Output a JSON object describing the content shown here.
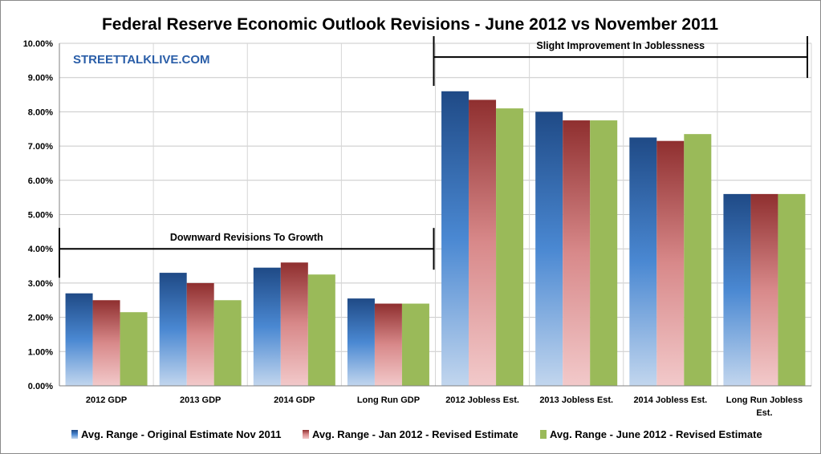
{
  "chart_data": {
    "type": "bar",
    "title": "Federal Reserve Economic Outlook Revisions - June 2012 vs November 2011",
    "xlabel": "",
    "ylabel": "",
    "ylim": [
      0,
      10
    ],
    "yticks": [
      "0.00%",
      "1.00%",
      "2.00%",
      "3.00%",
      "4.00%",
      "5.00%",
      "6.00%",
      "7.00%",
      "8.00%",
      "9.00%",
      "10.00%"
    ],
    "grid": true,
    "legend": "bottom",
    "categories": [
      [
        "2012 GDP"
      ],
      [
        "2013 GDP"
      ],
      [
        "2014 GDP"
      ],
      [
        "Long Run GDP"
      ],
      [
        "2012 Jobless Est."
      ],
      [
        "2013 Jobless Est."
      ],
      [
        "2014 Jobless Est."
      ],
      [
        "Long Run Jobless",
        "Est."
      ]
    ],
    "series": [
      {
        "name": "Avg. Range - Original Estimate Nov 2011",
        "color": "#2f5e9e",
        "values": [
          2.7,
          3.3,
          3.45,
          2.55,
          8.6,
          8.0,
          7.25,
          5.6
        ]
      },
      {
        "name": "Avg. Range - Jan 2012 - Revised Estimate",
        "color": "#a03a3a",
        "values": [
          2.5,
          3.0,
          3.6,
          2.4,
          8.35,
          7.75,
          7.15,
          5.6
        ]
      },
      {
        "name": "Avg. Range - June 2012 - Revised Estimate",
        "color": "#9aba59",
        "values": [
          2.15,
          2.5,
          3.25,
          2.4,
          8.1,
          7.75,
          7.35,
          5.6
        ]
      }
    ],
    "annotations": [
      {
        "text": "Downward Revisions To Growth",
        "from_category": 0,
        "to_category": 3,
        "level": 4.0
      },
      {
        "text": "Slight Improvement In Joblessness",
        "from_category": 4,
        "to_category": 7,
        "level": 9.6
      }
    ],
    "watermark": "STREETTALKLIVE.COM"
  }
}
